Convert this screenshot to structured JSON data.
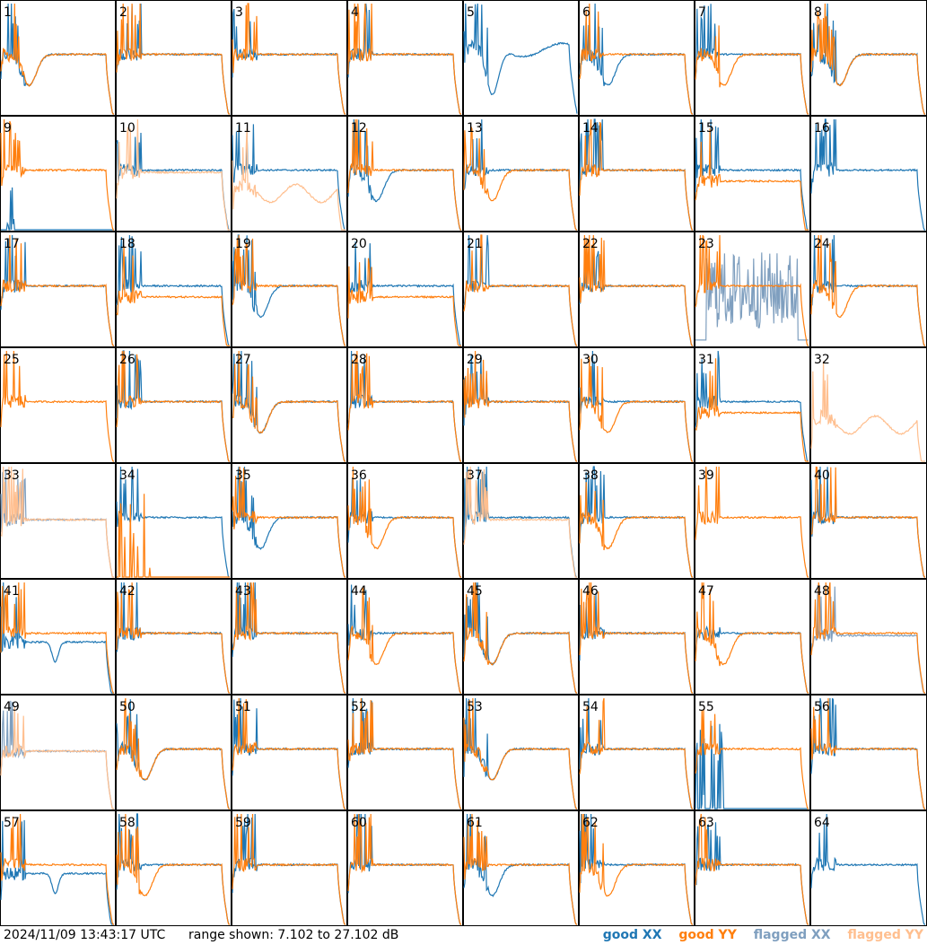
{
  "chart_data": {
    "type": "line",
    "title": "",
    "panel_layout": "8x8 grid of small-multiple spectra",
    "panels": [
      {
        "id": "1",
        "shape": {
          "xx": "trough",
          "yy": "trough"
        }
      },
      {
        "id": "2",
        "shape": {
          "xx": "flat",
          "yy": "flat"
        }
      },
      {
        "id": "3",
        "shape": {
          "xx": "flat",
          "yy": "flat"
        }
      },
      {
        "id": "4",
        "shape": {
          "xx": "flat",
          "yy": "flat"
        }
      },
      {
        "id": "5",
        "shape": {
          "xx": "trough_high",
          "yy": "none"
        }
      },
      {
        "id": "6",
        "shape": {
          "xx": "trough",
          "yy": "flat"
        }
      },
      {
        "id": "7",
        "shape": {
          "xx": "flat",
          "yy": "trough"
        }
      },
      {
        "id": "8",
        "shape": {
          "xx": "trough",
          "yy": "trough"
        }
      },
      {
        "id": "9",
        "shape": {
          "xx": "flat_spikes",
          "yy": "flat"
        }
      },
      {
        "id": "10",
        "shape": {
          "xx": "flat",
          "yy": "flagged_flat"
        }
      },
      {
        "id": "11",
        "shape": {
          "xx": "flat",
          "yy": "flagged_low"
        }
      },
      {
        "id": "12",
        "shape": {
          "xx": "trough",
          "yy": "flat"
        }
      },
      {
        "id": "13",
        "shape": {
          "xx": "flat",
          "yy": "trough"
        }
      },
      {
        "id": "14",
        "shape": {
          "xx": "flat",
          "yy": "flat"
        }
      },
      {
        "id": "15",
        "shape": {
          "xx": "flat",
          "yy": "flat_low"
        }
      },
      {
        "id": "16",
        "shape": {
          "xx": "flat",
          "yy": "none"
        }
      },
      {
        "id": "17",
        "shape": {
          "xx": "flat",
          "yy": "flat"
        }
      },
      {
        "id": "18",
        "shape": {
          "xx": "flat",
          "yy": "flat_low"
        }
      },
      {
        "id": "19",
        "shape": {
          "xx": "trough",
          "yy": "flat"
        }
      },
      {
        "id": "20",
        "shape": {
          "xx": "flat",
          "yy": "flat_low"
        }
      },
      {
        "id": "21",
        "shape": {
          "xx": "flat",
          "yy": "flat"
        }
      },
      {
        "id": "22",
        "shape": {
          "xx": "flat",
          "yy": "flat"
        }
      },
      {
        "id": "23",
        "shape": {
          "xx": "flagged_noise",
          "yy": "flat"
        }
      },
      {
        "id": "24",
        "shape": {
          "xx": "flat",
          "yy": "trough"
        }
      },
      {
        "id": "25",
        "shape": {
          "xx": "none",
          "yy": "flat"
        }
      },
      {
        "id": "26",
        "shape": {
          "xx": "flat",
          "yy": "flat"
        }
      },
      {
        "id": "27",
        "shape": {
          "xx": "trough",
          "yy": "trough"
        }
      },
      {
        "id": "28",
        "shape": {
          "xx": "flat",
          "yy": "flat"
        }
      },
      {
        "id": "29",
        "shape": {
          "xx": "flat",
          "yy": "flat"
        }
      },
      {
        "id": "30",
        "shape": {
          "xx": "flat",
          "yy": "trough"
        }
      },
      {
        "id": "31",
        "shape": {
          "xx": "flat",
          "yy": "flat_low"
        }
      },
      {
        "id": "32",
        "shape": {
          "xx": "none",
          "yy": "flagged_low"
        }
      },
      {
        "id": "33",
        "shape": {
          "xx": "flagged_flat",
          "yy": "flagged_flat"
        }
      },
      {
        "id": "34",
        "shape": {
          "xx": "flat",
          "yy": "spikes_only"
        }
      },
      {
        "id": "35",
        "shape": {
          "xx": "trough",
          "yy": "flat"
        }
      },
      {
        "id": "36",
        "shape": {
          "xx": "flat",
          "yy": "trough"
        }
      },
      {
        "id": "37",
        "shape": {
          "xx": "flat",
          "yy": "flagged_flat"
        }
      },
      {
        "id": "38",
        "shape": {
          "xx": "flat",
          "yy": "trough"
        }
      },
      {
        "id": "39",
        "shape": {
          "xx": "none",
          "yy": "flat"
        }
      },
      {
        "id": "40",
        "shape": {
          "xx": "flat",
          "yy": "flat"
        }
      },
      {
        "id": "41",
        "shape": {
          "xx": "dip",
          "yy": "flat"
        }
      },
      {
        "id": "42",
        "shape": {
          "xx": "flat",
          "yy": "flat"
        }
      },
      {
        "id": "43",
        "shape": {
          "xx": "flat",
          "yy": "flat"
        }
      },
      {
        "id": "44",
        "shape": {
          "xx": "flat",
          "yy": "trough"
        }
      },
      {
        "id": "45",
        "shape": {
          "xx": "trough",
          "yy": "trough"
        }
      },
      {
        "id": "46",
        "shape": {
          "xx": "flat",
          "yy": "flat"
        }
      },
      {
        "id": "47",
        "shape": {
          "xx": "flat",
          "yy": "trough"
        }
      },
      {
        "id": "48",
        "shape": {
          "xx": "flagged_flat",
          "yy": "flat"
        }
      },
      {
        "id": "49",
        "shape": {
          "xx": "flagged_flat",
          "yy": "flagged_flat"
        }
      },
      {
        "id": "50",
        "shape": {
          "xx": "trough",
          "yy": "trough"
        }
      },
      {
        "id": "51",
        "shape": {
          "xx": "flat",
          "yy": "flat"
        }
      },
      {
        "id": "52",
        "shape": {
          "xx": "flat",
          "yy": "flat"
        }
      },
      {
        "id": "53",
        "shape": {
          "xx": "trough",
          "yy": "trough"
        }
      },
      {
        "id": "54",
        "shape": {
          "xx": "flat",
          "yy": "flat"
        }
      },
      {
        "id": "55",
        "shape": {
          "xx": "spikes_only",
          "yy": "flat"
        }
      },
      {
        "id": "56",
        "shape": {
          "xx": "flat",
          "yy": "flat"
        }
      },
      {
        "id": "57",
        "shape": {
          "xx": "dip",
          "yy": "flat"
        }
      },
      {
        "id": "58",
        "shape": {
          "xx": "flat",
          "yy": "trough"
        }
      },
      {
        "id": "59",
        "shape": {
          "xx": "flat",
          "yy": "flat"
        }
      },
      {
        "id": "60",
        "shape": {
          "xx": "flat",
          "yy": "flat"
        }
      },
      {
        "id": "61",
        "shape": {
          "xx": "trough",
          "yy": "flat"
        }
      },
      {
        "id": "62",
        "shape": {
          "xx": "flat",
          "yy": "trough"
        }
      },
      {
        "id": "63",
        "shape": {
          "xx": "flat",
          "yy": "flat"
        }
      },
      {
        "id": "64",
        "shape": {
          "xx": "flat",
          "yy": "none"
        }
      }
    ],
    "series": [
      {
        "name": "good XX",
        "color": "#1f77b4"
      },
      {
        "name": "good YY",
        "color": "#ff7f0e"
      },
      {
        "name": "flagged XX",
        "color": "#7f9fbf"
      },
      {
        "name": "flagged YY",
        "color": "#ffbf8f"
      }
    ],
    "ylim": [
      7.102,
      27.102
    ]
  },
  "footer": {
    "timestamp": "2024/11/09 13:43:17 UTC",
    "range_text": "range shown: 7.102 to 27.102 dB"
  },
  "legend": {
    "good_xx": "good XX",
    "good_yy": "good YY",
    "flagged_xx": "flagged XX",
    "flagged_yy": "flagged YY"
  },
  "colors": {
    "good_xx": "#1f77b4",
    "good_yy": "#ff7f0e",
    "flagged_xx": "#7f9fbf",
    "flagged_yy": "#ffbf8f"
  }
}
